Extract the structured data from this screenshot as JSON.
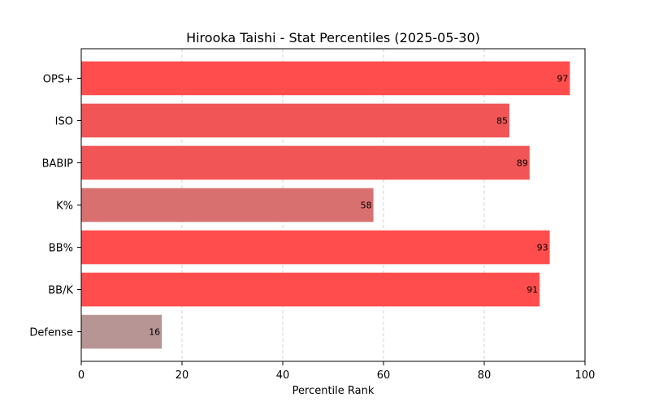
{
  "chart_data": {
    "type": "bar",
    "orientation": "horizontal",
    "title": "Hirooka Taishi - Stat Percentiles (2025-05-30)",
    "xlabel": "Percentile Rank",
    "ylabel": "",
    "xlim": [
      0,
      100
    ],
    "xticks": [
      "0",
      "20",
      "40",
      "60",
      "80",
      "100"
    ],
    "grid": "vertical dashed",
    "categories": [
      "OPS+",
      "ISO",
      "BABIP",
      "K%",
      "BB%",
      "BB/K",
      "Defense"
    ],
    "values": [
      97,
      85,
      89,
      58,
      93,
      91,
      16
    ],
    "value_labels": [
      "97",
      "85",
      "89",
      "58",
      "93",
      "91",
      "16"
    ],
    "colors": [
      "#ff4d4d",
      "#f25555",
      "#f25555",
      "#d97070",
      "#ff4d4d",
      "#ff4d4d",
      "#b89595"
    ]
  }
}
